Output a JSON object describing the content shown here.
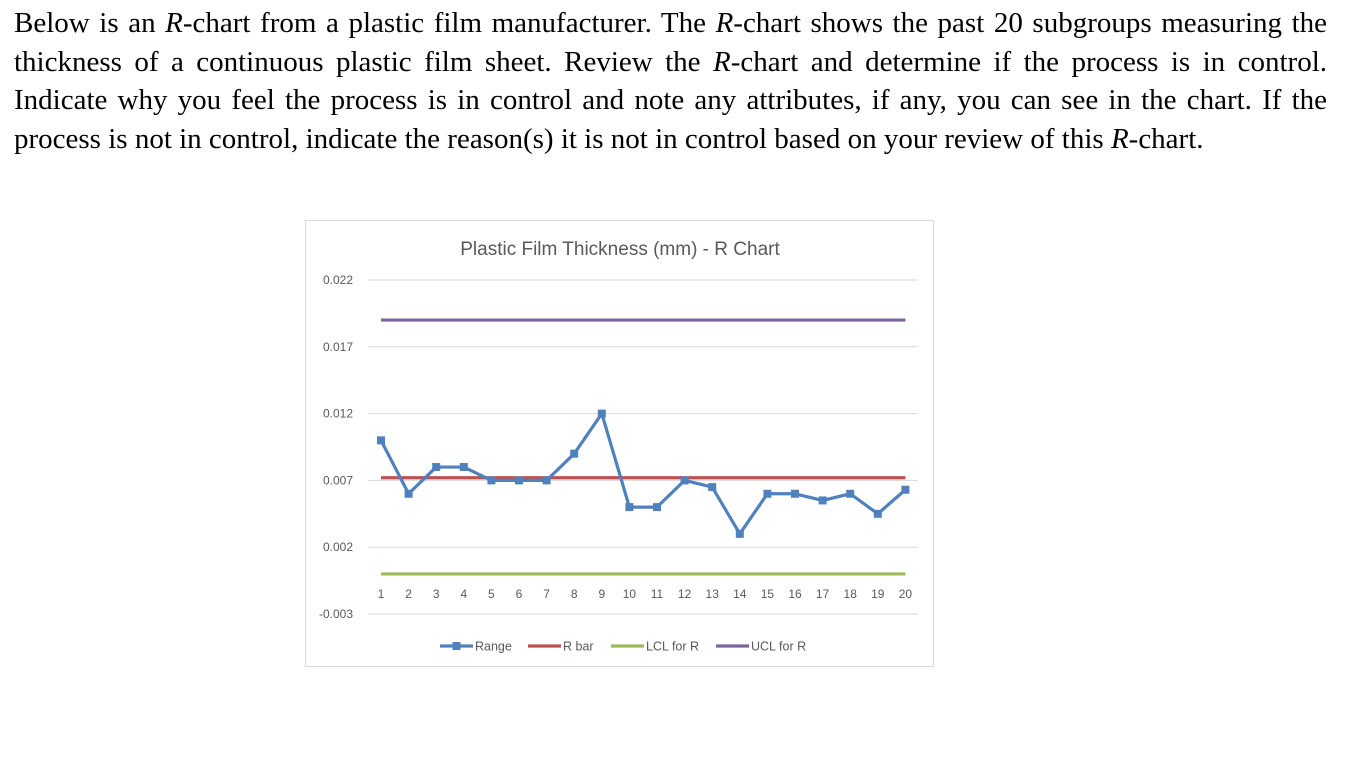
{
  "question": {
    "segments": [
      {
        "text": "Below is an ",
        "italic": false
      },
      {
        "text": "R",
        "italic": true
      },
      {
        "text": "-chart from a plastic film manufacturer. The ",
        "italic": false
      },
      {
        "text": "R",
        "italic": true
      },
      {
        "text": "-chart shows the past 20 subgroups measuring the thickness of a continuous plastic film sheet. Review the ",
        "italic": false
      },
      {
        "text": "R",
        "italic": true
      },
      {
        "text": "-chart and determine if the process is in control. Indicate why you feel the process is in control and note any attributes, if any, you can see in the chart. If the process is not in control, indicate the reason(s) it is not in control based on your review of this ",
        "italic": false
      },
      {
        "text": "R",
        "italic": true
      },
      {
        "text": "-chart.",
        "italic": false
      }
    ]
  },
  "chart_data": {
    "type": "line",
    "title": "Plastic Film Thickness (mm) - R Chart",
    "xlabel": "",
    "ylabel": "",
    "categories": [
      "1",
      "2",
      "3",
      "4",
      "5",
      "6",
      "7",
      "8",
      "9",
      "10",
      "11",
      "12",
      "13",
      "14",
      "15",
      "16",
      "17",
      "18",
      "19",
      "20"
    ],
    "y_ticks": [
      "0.022",
      "0.017",
      "0.012",
      "0.007",
      "0.002",
      "-0.003"
    ],
    "ylim": [
      -0.003,
      0.022
    ],
    "grid": true,
    "legend_position": "bottom",
    "series": [
      {
        "name": "Range",
        "color": "#4f81bd",
        "marker": "square",
        "values": [
          0.01,
          0.006,
          0.008,
          0.008,
          0.007,
          0.007,
          0.007,
          0.009,
          0.012,
          0.005,
          0.005,
          0.007,
          0.0065,
          0.003,
          0.006,
          0.006,
          0.0055,
          0.006,
          0.0045,
          0.0063
        ]
      },
      {
        "name": "R bar",
        "color": "#c0504d",
        "values": [
          0.0072,
          0.0072,
          0.0072,
          0.0072,
          0.0072,
          0.0072,
          0.0072,
          0.0072,
          0.0072,
          0.0072,
          0.0072,
          0.0072,
          0.0072,
          0.0072,
          0.0072,
          0.0072,
          0.0072,
          0.0072,
          0.0072,
          0.0072
        ]
      },
      {
        "name": "LCL for R",
        "color": "#9bbb59",
        "values": [
          0,
          0,
          0,
          0,
          0,
          0,
          0,
          0,
          0,
          0,
          0,
          0,
          0,
          0,
          0,
          0,
          0,
          0,
          0,
          0
        ]
      },
      {
        "name": "UCL for R",
        "color": "#8064a2",
        "values": [
          0.019,
          0.019,
          0.019,
          0.019,
          0.019,
          0.019,
          0.019,
          0.019,
          0.019,
          0.019,
          0.019,
          0.019,
          0.019,
          0.019,
          0.019,
          0.019,
          0.019,
          0.019,
          0.019,
          0.019
        ]
      }
    ],
    "colors": {
      "grid": "#d9d9d9",
      "text": "#595959",
      "border": "#d9d9d9"
    }
  }
}
